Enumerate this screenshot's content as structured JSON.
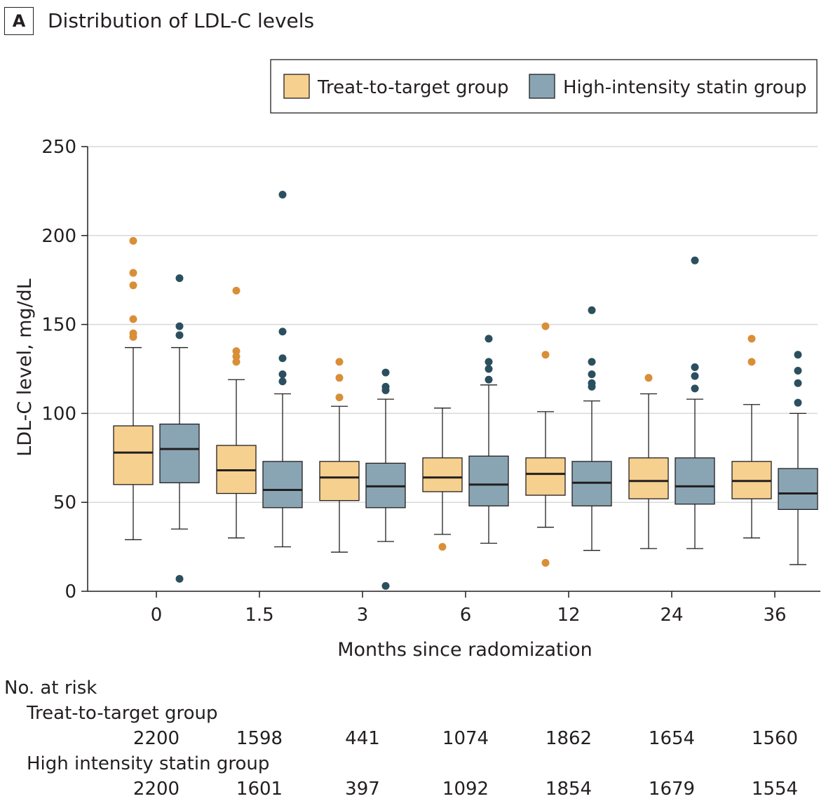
{
  "panel": {
    "letter": "A",
    "title": "Distribution of LDL-C levels"
  },
  "colors": {
    "treat": "#f6d08f",
    "statin": "#89a5b4",
    "treat_outlier": "#d98f37",
    "statin_outlier": "#2b4f5e",
    "median": "#231f20",
    "grid": "#d9d9d9"
  },
  "chart_data": {
    "type": "boxplot",
    "title": "Distribution of LDL-C levels",
    "xlabel": "Months since radomization",
    "ylabel": "LDL-C level, mg/dL",
    "ylim": [
      0,
      250
    ],
    "yticks": [
      0,
      50,
      100,
      150,
      200,
      250
    ],
    "categories": [
      "0",
      "1.5",
      "3",
      "6",
      "12",
      "24",
      "36"
    ],
    "grid": "horizontal",
    "legend_position": "top-right",
    "series": [
      {
        "name": "Treat-to-target group",
        "boxes": [
          {
            "whisker_low": 29,
            "q1": 60,
            "median": 78,
            "q3": 93,
            "whisker_high": 137,
            "outliers": [
              197,
              179,
              172,
              153,
              145,
              143
            ]
          },
          {
            "whisker_low": 30,
            "q1": 55,
            "median": 68,
            "q3": 82,
            "whisker_high": 119,
            "outliers": [
              169,
              135,
              132,
              129
            ]
          },
          {
            "whisker_low": 22,
            "q1": 51,
            "median": 64,
            "q3": 73,
            "whisker_high": 104,
            "outliers": [
              129,
              120,
              109
            ]
          },
          {
            "whisker_low": 32,
            "q1": 56,
            "median": 64,
            "q3": 75,
            "whisker_high": 103,
            "outliers": [
              25
            ]
          },
          {
            "whisker_low": 36,
            "q1": 54,
            "median": 66,
            "q3": 75,
            "whisker_high": 101,
            "outliers": [
              149,
              133,
              16
            ]
          },
          {
            "whisker_low": 24,
            "q1": 52,
            "median": 62,
            "q3": 75,
            "whisker_high": 111,
            "outliers": [
              120
            ]
          },
          {
            "whisker_low": 30,
            "q1": 52,
            "median": 62,
            "q3": 73,
            "whisker_high": 105,
            "outliers": [
              142,
              129
            ]
          }
        ]
      },
      {
        "name": "High-intensity statin group",
        "boxes": [
          {
            "whisker_low": 35,
            "q1": 61,
            "median": 80,
            "q3": 94,
            "whisker_high": 137,
            "outliers": [
              176,
              149,
              144,
              7
            ]
          },
          {
            "whisker_low": 25,
            "q1": 47,
            "median": 57,
            "q3": 73,
            "whisker_high": 111,
            "outliers": [
              223,
              146,
              131,
              122,
              118
            ]
          },
          {
            "whisker_low": 28,
            "q1": 47,
            "median": 59,
            "q3": 72,
            "whisker_high": 108,
            "outliers": [
              123,
              115,
              113,
              3
            ]
          },
          {
            "whisker_low": 27,
            "q1": 48,
            "median": 60,
            "q3": 76,
            "whisker_high": 116,
            "outliers": [
              142,
              129,
              125,
              119
            ]
          },
          {
            "whisker_low": 23,
            "q1": 48,
            "median": 61,
            "q3": 73,
            "whisker_high": 107,
            "outliers": [
              158,
              129,
              122,
              117,
              115
            ]
          },
          {
            "whisker_low": 24,
            "q1": 49,
            "median": 59,
            "q3": 75,
            "whisker_high": 108,
            "outliers": [
              186,
              126,
              121,
              114
            ]
          },
          {
            "whisker_low": 15,
            "q1": 46,
            "median": 55,
            "q3": 69,
            "whisker_high": 100,
            "outliers": [
              133,
              124,
              117,
              106
            ]
          }
        ]
      }
    ]
  },
  "risk_table": {
    "heading": "No. at risk",
    "rows": [
      {
        "label": "Treat-to-target group",
        "values": [
          "2200",
          "1598",
          "441",
          "1074",
          "1862",
          "1654",
          "1560"
        ]
      },
      {
        "label": "High intensity statin group",
        "values": [
          "2200",
          "1601",
          "397",
          "1092",
          "1854",
          "1679",
          "1554"
        ]
      }
    ]
  }
}
